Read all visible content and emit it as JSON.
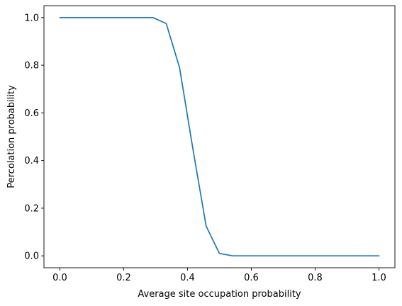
{
  "chart_data": {
    "type": "line",
    "title": "",
    "xlabel": "Average site occupation probability",
    "ylabel": "Percolation probability",
    "xlim": [
      -0.05,
      1.05
    ],
    "ylim": [
      -0.05,
      1.05
    ],
    "xticks": [
      0.0,
      0.2,
      0.4,
      0.6,
      0.8,
      1.0
    ],
    "xtick_labels": [
      "0.0",
      "0.2",
      "0.4",
      "0.6",
      "0.8",
      "1.0"
    ],
    "yticks": [
      0.0,
      0.2,
      0.4,
      0.6,
      0.8,
      1.0
    ],
    "ytick_labels": [
      "0.0",
      "0.2",
      "0.4",
      "0.6",
      "0.8",
      "1.0"
    ],
    "grid": false,
    "legend": "none",
    "series": [
      {
        "color": "#1f77b4",
        "x": [
          0.0,
          0.0417,
          0.0833,
          0.125,
          0.1667,
          0.2083,
          0.25,
          0.2917,
          0.3333,
          0.375,
          0.4167,
          0.4583,
          0.5,
          0.5417,
          0.5833,
          0.625,
          0.6667,
          0.7083,
          0.75,
          0.7917,
          0.8333,
          0.875,
          0.9167,
          0.9583,
          1.0
        ],
        "y": [
          1.0,
          1.0,
          1.0,
          1.0,
          1.0,
          1.0,
          1.0,
          1.0,
          0.975,
          0.79,
          0.45,
          0.125,
          0.01,
          0.0,
          0.0,
          0.0,
          0.0,
          0.0,
          0.0,
          0.0,
          0.0,
          0.0,
          0.0,
          0.0,
          0.0
        ]
      }
    ]
  }
}
